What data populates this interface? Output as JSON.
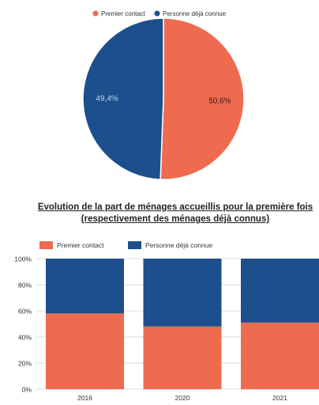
{
  "chart_data": [
    {
      "type": "pie",
      "legend": [
        {
          "name": "Premier contact",
          "color": "#ee6b4f"
        },
        {
          "name": "Personne déjà connue",
          "color": "#1c4f8c"
        }
      ],
      "legend_position": "top",
      "slices": [
        {
          "name": "Premier contact",
          "value": 50.6,
          "label": "50,6%",
          "color": "#ee6b4f"
        },
        {
          "name": "Personne déjà connue",
          "value": 49.4,
          "label": "49,4%",
          "color": "#1c4f8c"
        }
      ]
    },
    {
      "type": "bar",
      "stacked": true,
      "title": "Evolution de la part de ménages accueillis pour la première fois (respectivement des ménages déjà connus)",
      "categories": [
        "2016",
        "2020",
        "2021"
      ],
      "series": [
        {
          "name": "Premier contact",
          "color": "#ee6b4f",
          "values": [
            58,
            48,
            51
          ]
        },
        {
          "name": "Personne déjà connue",
          "color": "#1c4f8c",
          "values": [
            42,
            52,
            49
          ]
        }
      ],
      "legend_position": "top-left",
      "ylim": [
        0,
        100
      ],
      "yticks": [
        "0%",
        "20%",
        "40%",
        "60%",
        "80%",
        "100%"
      ],
      "yticks_values": [
        0,
        20,
        40,
        60,
        80,
        100
      ],
      "grid": true
    }
  ]
}
